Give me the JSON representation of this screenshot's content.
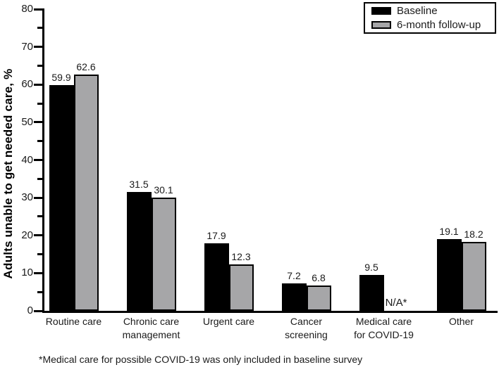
{
  "chart_data": {
    "type": "bar",
    "title": "",
    "xlabel": "",
    "ylabel": "Adults unable to get needed care, %",
    "ylim": [
      0,
      80
    ],
    "y_major_tick_step": 10,
    "y_minor_tick_step": 5,
    "grid": false,
    "legend_position": "top-right",
    "categories": [
      "Routine care",
      "Chronic care\nmanagement",
      "Urgent care",
      "Cancer\nscreening",
      "Medical care\nfor COVID-19",
      "Other"
    ],
    "series": [
      {
        "name": "Baseline",
        "color": "#000000",
        "values": [
          59.9,
          31.5,
          17.9,
          7.2,
          9.5,
          19.1
        ]
      },
      {
        "name": "6-month follow-up",
        "color": "#a6a6a8",
        "values": [
          62.6,
          30.1,
          12.3,
          6.8,
          null,
          18.2
        ]
      }
    ],
    "null_label": "N/A*",
    "axis_color": "#000000",
    "background_color": "#ffffff"
  },
  "footnote": "*Medical care for possible COVID-19 was only included in baseline survey"
}
